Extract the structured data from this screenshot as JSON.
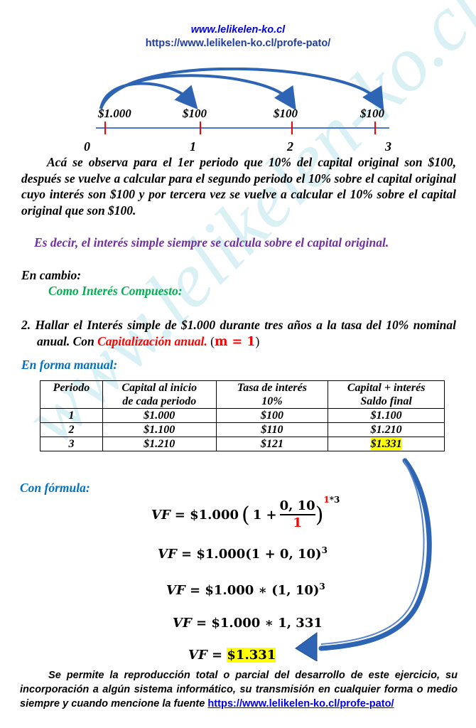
{
  "header": {
    "site_url": "www.lelikelen-ko.cl",
    "page_url": "https://www.lelikelen-ko.cl/profe-pato/"
  },
  "timeline": {
    "amounts": [
      "$1.000",
      "$100",
      "$100",
      "$100"
    ],
    "periods": [
      "0",
      "1",
      "2",
      "3"
    ]
  },
  "explanation": "Acá se observa para el 1er periodo que 10% del capital original son $100, después se vuelve a calcular para el segundo periodo  el 10% sobre el capital original cuyo interés son $100 y por tercera vez se vuelve a calcular el 10% sobre el capital original que son $100.",
  "summary": "Es decir, el interés simple siempre se calcula sobre el capital original.",
  "en_cambio": "En cambio:",
  "compuesto": "Como Interés Compuesto:",
  "problem": {
    "text": "2. Hallar el Interés simple de $1.000 durante tres años a la tasa del 10% nominal anual. Con ",
    "capitalizacion": "Capitalización anual.",
    "m_open": "(",
    "m_eq": "m = 1",
    "m_close": ")"
  },
  "manual_label": "En forma manual:",
  "table": {
    "headers": [
      [
        "Periodo",
        ""
      ],
      [
        "Capital al inicio",
        "de cada periodo"
      ],
      [
        "Tasa de interés",
        "10%"
      ],
      [
        "Capital + interés",
        "Saldo final"
      ]
    ],
    "rows": [
      [
        "1",
        "$1.000",
        "$100",
        "$1.100"
      ],
      [
        "2",
        "$1.100",
        "$110",
        "$1.210"
      ],
      [
        "3",
        "$1.210",
        "$121",
        "$1.331"
      ]
    ]
  },
  "formula_label": "Con fórmula:",
  "formulas": {
    "f1_lhs": "VF",
    "f1_principal": "= $1.000",
    "f1_num": "0, 10",
    "f1_den": "1",
    "f1_exp_m": "1",
    "f1_exp_rest": "*3",
    "f2": "= $1.000(1 + 0, 10)",
    "f2_exp": "3",
    "f3": "= $1.000 ∗ (1, 10)",
    "f3_exp": "3",
    "f4": "= $1.000 ∗ 1, 331",
    "f5_eq": "=",
    "f5_val": "$1.331"
  },
  "footer": {
    "text": "Se permite la reproducción total o parcial del desarrollo de este ejercicio, su incorporación a algún sistema informático, su transmisión en cualquier forma o medio siempre y cuando mencione la fuente ",
    "link": "https://www.lelikelen-ko.cl/profe-pato/"
  },
  "watermark": "www.lelikelen-ko.cl",
  "colors": {
    "header_blue": "#0000ee",
    "site_blue": "#1f3ba0",
    "purple": "#7030a0",
    "green": "#00b050",
    "red": "#ff0000",
    "label_blue": "#0070c0",
    "arrow_blue": "#2e64b4",
    "highlight": "#ffff00"
  }
}
